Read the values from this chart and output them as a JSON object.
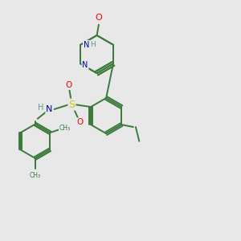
{
  "bg_color": "#e8e8e8",
  "bond_color": "#3a7a3a",
  "atom_colors": {
    "O": "#ff0000",
    "N": "#0000cc",
    "S": "#cccc00",
    "H": "#5a9a8a",
    "C": "#3a7a3a"
  },
  "figsize": [
    3.0,
    3.0
  ],
  "dpi": 100
}
